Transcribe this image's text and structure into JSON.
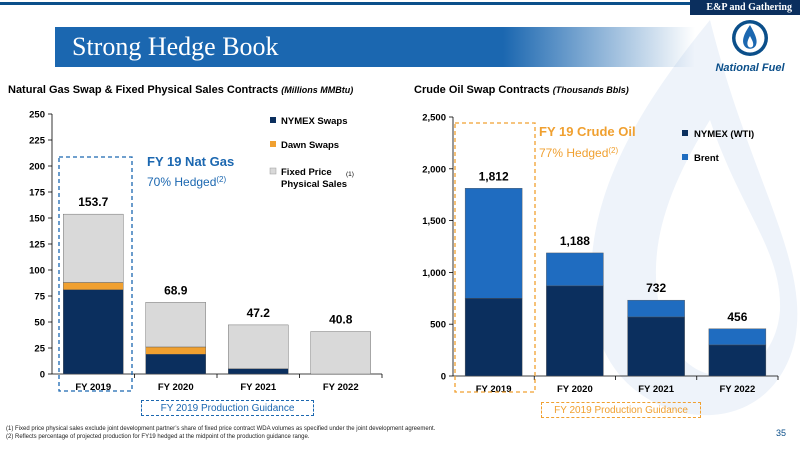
{
  "header": {
    "tag": "E&P and Gathering",
    "title": "Strong Hedge Book",
    "logo_text": "National Fuel"
  },
  "colors": {
    "nymex": "#0b2f5e",
    "brent": "#1f6cc0",
    "dawn": "#f0a030",
    "fixed": "#d9d9d9",
    "callout_blue": "#1b67b0",
    "callout_orange": "#f0a030"
  },
  "left": {
    "heading": "Natural Gas Swap & Fixed Physical Sales Contracts",
    "unit": "(Millions MMBtu)",
    "callout_title": "FY 19 Nat Gas",
    "callout_text": "70% Hedged",
    "callout_sup": "(2)",
    "guidance": "FY 2019 Production Guidance",
    "legend": [
      {
        "label": "NYMEX Swaps",
        "color": "#0b2f5e"
      },
      {
        "label": "Dawn Swaps",
        "color": "#f0a030"
      },
      {
        "label": "Fixed Price Physical Sales",
        "line1": "Fixed Price",
        "line2": "Physical Sales",
        "sup": "(1)",
        "color": "#d9d9d9"
      }
    ]
  },
  "right": {
    "heading": "Crude Oil Swap Contracts",
    "unit": "(Thousands Bbls)",
    "callout_title": "FY 19 Crude Oil",
    "callout_text": "77% Hedged",
    "callout_sup": "(2)",
    "guidance": "FY 2019 Production Guidance",
    "legend": [
      {
        "label": "NYMEX (WTI)",
        "color": "#0b2f5e"
      },
      {
        "label": "Brent",
        "color": "#1f6cc0"
      }
    ]
  },
  "chart_data": [
    {
      "type": "bar",
      "stacked": true,
      "categories": [
        "FY 2019",
        "FY 2020",
        "FY 2021",
        "FY 2022"
      ],
      "series": [
        {
          "name": "NYMEX Swaps",
          "values": [
            81,
            19,
            5,
            0
          ]
        },
        {
          "name": "Dawn Swaps",
          "values": [
            7,
            7,
            0,
            0
          ]
        },
        {
          "name": "Fixed Price Physical Sales",
          "values": [
            65.7,
            42.9,
            42.2,
            40.8
          ]
        }
      ],
      "totals": [
        "153.7",
        "68.9",
        "47.2",
        "40.8"
      ],
      "ylim": [
        0,
        250
      ],
      "yticks": [
        "0",
        "25",
        "50",
        "75",
        "100",
        "125",
        "150",
        "175",
        "200",
        "225",
        "250"
      ],
      "grid": false,
      "legend": "right"
    },
    {
      "type": "bar",
      "stacked": true,
      "categories": [
        "FY 2019",
        "FY 2020",
        "FY 2021",
        "FY 2022"
      ],
      "series": [
        {
          "name": "NYMEX (WTI)",
          "values": [
            750,
            870,
            570,
            300
          ]
        },
        {
          "name": "Brent",
          "values": [
            1062,
            318,
            162,
            156
          ]
        }
      ],
      "totals": [
        "1,812",
        "1,188",
        "732",
        "456"
      ],
      "ylim": [
        0,
        2500
      ],
      "yticks": [
        "0",
        "500",
        "1,000",
        "1,500",
        "2,000",
        "2,500"
      ],
      "grid": false,
      "legend": "right"
    }
  ],
  "footnotes": [
    "(1)  Fixed price physical sales exclude joint development partner’s share of fixed price contract WDA volumes as specified under the joint development agreement.",
    "(2)  Reflects percentage of projected production for FY19 hedged at the midpoint of the production guidance range."
  ],
  "page_number": "35"
}
